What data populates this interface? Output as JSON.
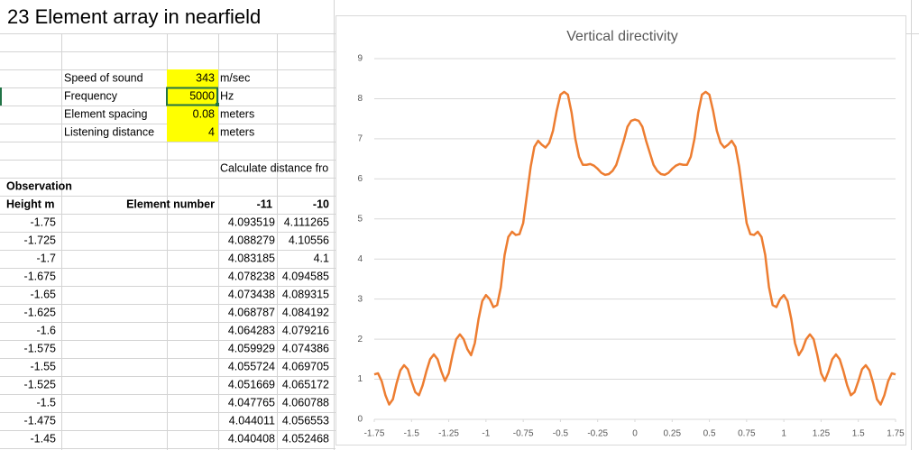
{
  "sheet": {
    "title": "23 Element array in nearfield",
    "params": [
      {
        "label": "Speed of sound",
        "value": 343,
        "unit": "m/sec"
      },
      {
        "label": "Frequency",
        "value": 5000,
        "unit": "Hz"
      },
      {
        "label": "Element spacing",
        "value": 0.08,
        "unit": "meters"
      },
      {
        "label": "Listening distance",
        "value": 4,
        "unit": "meters"
      }
    ],
    "note": "Calculate distance fro",
    "section": "Observation",
    "headers": [
      "Height m",
      "Element number",
      "-11",
      "-10"
    ],
    "rows": [
      [
        "-1.75",
        "4.093519",
        "4.111265"
      ],
      [
        "-1.725",
        "4.088279",
        "4.10556"
      ],
      [
        "-1.7",
        "4.083185",
        "4.1"
      ],
      [
        "-1.675",
        "4.078238",
        "4.094585"
      ],
      [
        "-1.65",
        "4.073438",
        "4.089315"
      ],
      [
        "-1.625",
        "4.068787",
        "4.084192"
      ],
      [
        "-1.6",
        "4.064283",
        "4.079216"
      ],
      [
        "-1.575",
        "4.059929",
        "4.074386"
      ],
      [
        "-1.55",
        "4.055724",
        "4.069705"
      ],
      [
        "-1.525",
        "4.051669",
        "4.065172"
      ],
      [
        "-1.5",
        "4.047765",
        "4.060788"
      ],
      [
        "-1.475",
        "4.044011",
        "4.056553"
      ],
      [
        "-1.45",
        "4.040408",
        "4.052468"
      ]
    ]
  },
  "chart_data": {
    "type": "line",
    "title": "Vertical directivity",
    "color": "#ed7d31",
    "grid": true,
    "xlim": [
      -1.75,
      1.75
    ],
    "ylim": [
      0,
      9
    ],
    "xticks": [
      -1.75,
      -1.5,
      -1.25,
      -1,
      -0.75,
      -0.5,
      -0.25,
      0,
      0.25,
      0.5,
      0.75,
      1,
      1.25,
      1.5,
      1.75
    ],
    "yticks": [
      0,
      1,
      2,
      3,
      4,
      5,
      6,
      7,
      8,
      9
    ],
    "x": [
      -1.75,
      -1.725,
      -1.7,
      -1.675,
      -1.65,
      -1.625,
      -1.6,
      -1.575,
      -1.55,
      -1.525,
      -1.5,
      -1.475,
      -1.45,
      -1.425,
      -1.4,
      -1.375,
      -1.35,
      -1.325,
      -1.3,
      -1.275,
      -1.25,
      -1.225,
      -1.2,
      -1.175,
      -1.15,
      -1.125,
      -1.1,
      -1.075,
      -1.05,
      -1.025,
      -1,
      -0.975,
      -0.95,
      -0.925,
      -0.9,
      -0.875,
      -0.85,
      -0.825,
      -0.8,
      -0.775,
      -0.75,
      -0.725,
      -0.7,
      -0.675,
      -0.65,
      -0.625,
      -0.6,
      -0.575,
      -0.55,
      -0.525,
      -0.5,
      -0.475,
      -0.45,
      -0.425,
      -0.4,
      -0.375,
      -0.35,
      -0.325,
      -0.3,
      -0.275,
      -0.25,
      -0.225,
      -0.2,
      -0.175,
      -0.15,
      -0.125,
      -0.1,
      -0.075,
      -0.05,
      -0.025,
      0,
      0.025,
      0.05,
      0.075,
      0.1,
      0.125,
      0.15,
      0.175,
      0.2,
      0.225,
      0.25,
      0.275,
      0.3,
      0.325,
      0.35,
      0.375,
      0.4,
      0.425,
      0.45,
      0.475,
      0.5,
      0.525,
      0.55,
      0.575,
      0.6,
      0.625,
      0.65,
      0.675,
      0.7,
      0.725,
      0.75,
      0.775,
      0.8,
      0.825,
      0.85,
      0.875,
      0.9,
      0.925,
      0.95,
      0.975,
      1,
      1.025,
      1.05,
      1.075,
      1.1,
      1.125,
      1.15,
      1.175,
      1.2,
      1.225,
      1.25,
      1.275,
      1.3,
      1.325,
      1.35,
      1.375,
      1.4,
      1.425,
      1.45,
      1.475,
      1.5,
      1.525,
      1.55,
      1.575,
      1.6,
      1.625,
      1.65,
      1.675,
      1.7,
      1.725,
      1.75
    ],
    "values": [
      1.12,
      1.15,
      0.95,
      0.6,
      0.37,
      0.5,
      0.9,
      1.22,
      1.35,
      1.25,
      0.95,
      0.68,
      0.6,
      0.85,
      1.2,
      1.5,
      1.62,
      1.5,
      1.2,
      0.96,
      1.15,
      1.6,
      2.0,
      2.12,
      2.0,
      1.75,
      1.6,
      1.9,
      2.5,
      2.95,
      3.1,
      3.0,
      2.8,
      2.85,
      3.3,
      4.1,
      4.55,
      4.68,
      4.6,
      4.62,
      4.9,
      5.6,
      6.3,
      6.8,
      6.95,
      6.85,
      6.78,
      6.9,
      7.2,
      7.7,
      8.1,
      8.17,
      8.1,
      7.65,
      7.0,
      6.55,
      6.35,
      6.35,
      6.37,
      6.33,
      6.25,
      6.15,
      6.1,
      6.12,
      6.2,
      6.35,
      6.65,
      6.95,
      7.3,
      7.45,
      7.48,
      7.45,
      7.3,
      6.95,
      6.65,
      6.35,
      6.2,
      6.12,
      6.1,
      6.15,
      6.25,
      6.33,
      6.37,
      6.35,
      6.35,
      6.55,
      7.0,
      7.65,
      8.1,
      8.17,
      8.1,
      7.7,
      7.2,
      6.9,
      6.78,
      6.85,
      6.95,
      6.8,
      6.3,
      5.6,
      4.9,
      4.62,
      4.6,
      4.68,
      4.55,
      4.1,
      3.3,
      2.85,
      2.8,
      3.0,
      3.1,
      2.95,
      2.5,
      1.9,
      1.6,
      1.75,
      2.0,
      2.12,
      2.0,
      1.6,
      1.15,
      0.96,
      1.2,
      1.5,
      1.62,
      1.5,
      1.2,
      0.85,
      0.6,
      0.68,
      0.95,
      1.25,
      1.35,
      1.22,
      0.9,
      0.5,
      0.37,
      0.6,
      0.95,
      1.15,
      1.12
    ]
  }
}
